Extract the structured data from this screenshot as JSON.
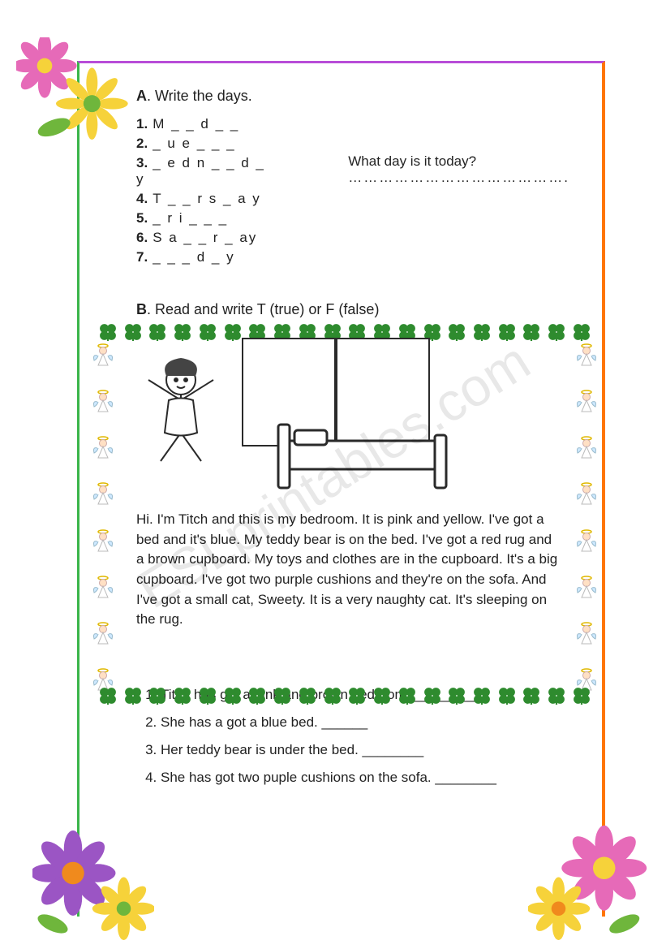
{
  "watermark": "ESLprintables.com",
  "sectionA": {
    "letter": "A",
    "title": ". Write the days.",
    "items": [
      "M _ _ d _ _",
      "_ u e _ _ _",
      "_ e d n _ _ d _ y",
      "T _ _ r s _ a y",
      "_ r i _ _ _",
      "S a _ _ r _ ay",
      "_ _ _ d _ y"
    ],
    "todayLabel": "What day is it today?",
    "todayLine": "……………………………………."
  },
  "sectionB": {
    "letter": "B",
    "title": ". Read and write T (true) or F (false)",
    "story": "Hi. I'm Titch and this is my bedroom. It is pink and yellow. I've got a bed and it's blue. My teddy bear is on the bed. I've got a red rug and a brown cupboard. My toys and clothes are in the cupboard. It's a big cupboard. I've got two purple cushions and they're on the sofa. And I've got a small cat, Sweety. It is a very naughty cat. It's sleeping on the rug.",
    "questions": [
      "Titch has got a pink and brown bedroom. ________",
      "She has a got a blue bed. ______",
      "Her teddy bear is under the bed. ________",
      "She has got two puple cushions on the sofa. ________"
    ]
  },
  "colors": {
    "borderTop": "#b84dd8",
    "borderLeft": "#3ab54a",
    "borderRight": "#ff7600",
    "clover": "#2e8b2e",
    "flowerPetalPink": "#e66ab8",
    "flowerPetalPurple": "#9b55c4",
    "flowerCenterYellow": "#f6d23a",
    "flowerCenterOrange": "#f08a1d",
    "leafGreen": "#6fb63c"
  }
}
